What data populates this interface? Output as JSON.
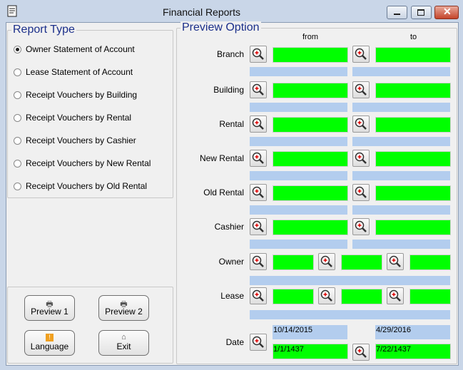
{
  "window": {
    "title": "Financial Reports"
  },
  "report_type": {
    "title": "Report Type",
    "options": [
      "Owner Statement of Account",
      "Lease Statement of Account",
      "Receipt Vouchers by Building",
      "Receipt Vouchers by Rental",
      "Receipt Vouchers by Cashier",
      "Receipt Vouchers by New Rental",
      "Receipt Vouchers by Old Rental"
    ]
  },
  "buttons": [
    "Preview 1",
    "Preview 2",
    "Language",
    "Exit"
  ],
  "preview_option": {
    "title": "Preview Option",
    "from": "from",
    "to": "to",
    "rows": [
      "Branch",
      "Building",
      "Rental",
      "New Rental",
      "Old Rental",
      "Cashier",
      "Owner",
      "Lease",
      "Date"
    ],
    "date": {
      "from_gregorian": "10/14/2015",
      "from_hijri": "1/1/1437",
      "to_gregorian": "4/29/2016",
      "to_hijri": "7/22/1437"
    }
  }
}
